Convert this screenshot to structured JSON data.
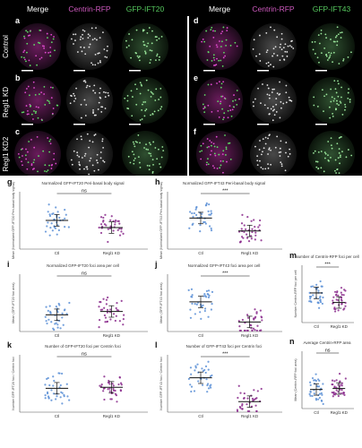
{
  "figure": {
    "micro": {
      "panels": [
        "a",
        "b",
        "c",
        "d",
        "e",
        "f"
      ],
      "header_left": [
        "Merge",
        "Centrin-RFP",
        "GFP-IFT20"
      ],
      "header_right": [
        "Merge",
        "Centrin-RFP",
        "GFP-IFT43"
      ],
      "rows": [
        "Control",
        "Regl1 KD",
        "Regl1 KD2"
      ]
    },
    "colors": {
      "magenta": "#b0279a",
      "green": "#39b54a",
      "blue": "#5b8fd6",
      "purple": "#8a2a8c"
    },
    "plots": [
      {
        "letter": "g",
        "title": "Normalized GFP-IFT20 Peri-basal body signal",
        "ylabel": "Mean (Normalized GFP-IFT20 Peri-basal body signal)",
        "categories": [
          "Ctl",
          "Regl1 KD"
        ],
        "significance": "ns",
        "means": [
          0.6,
          0.45
        ],
        "ylim": [
          0,
          1.2
        ]
      },
      {
        "letter": "h",
        "title": "Normalized GFP-IFT43 Peri-basal body signal",
        "ylabel": "Mean (Normalized GFP-IFT43 Peri-basal body signal)",
        "categories": [
          "Ctl",
          "Regl1 KD"
        ],
        "significance": "***",
        "means": [
          0.65,
          0.38
        ],
        "ylim": [
          0,
          1.2
        ]
      },
      {
        "letter": "i",
        "title": "Normalized GFP-IFT20 foci area per cell",
        "ylabel": "Mean (GFP-IFT20 foci area)",
        "categories": [
          "Ctl",
          "Regl1 KD"
        ],
        "significance": "ns",
        "means": [
          0.35,
          0.42
        ],
        "ylim": [
          0,
          1.2
        ]
      },
      {
        "letter": "j",
        "title": "Normalized GFP-IFT43 foci area per cell",
        "ylabel": "Mean (GFP-IFT43 foci area)",
        "categories": [
          "Ctl",
          "Regl1 KD"
        ],
        "significance": "***",
        "means": [
          0.62,
          0.2
        ],
        "ylim": [
          0,
          1.2
        ]
      },
      {
        "letter": "k",
        "title": "Number of GFP-IFT20 foci per Centrin foci",
        "ylabel": "Number GFP-IFT20 foci / Centrin foci",
        "categories": [
          "Ctl",
          "Regl1 KD"
        ],
        "significance": "ns",
        "means": [
          0.5,
          0.52
        ],
        "ylim": [
          0,
          1.2
        ]
      },
      {
        "letter": "l",
        "title": "Number of GFP-IFT43 foci per Centrin foci",
        "ylabel": "Number GFP-IFT43 foci / Centrin foci",
        "categories": [
          "Ctl",
          "Regl1 KD"
        ],
        "significance": "***",
        "means": [
          0.72,
          0.22
        ],
        "ylim": [
          0,
          1.2
        ]
      },
      {
        "letter": "m",
        "title": "Number of Centrin-RFP foci per cell",
        "ylabel": "Number Centrin-RFP foci per cell",
        "categories": [
          "Ctl",
          "Regl1 KD"
        ],
        "significance": "***",
        "means": [
          0.62,
          0.42
        ],
        "ylim": [
          0,
          1.2
        ]
      },
      {
        "letter": "n",
        "title": "Average Centrin-RFP area",
        "ylabel": "Mean (Centrin-RFP foci area)",
        "categories": [
          "Ctl",
          "Regl1 KD"
        ],
        "significance": "ns",
        "means": [
          0.4,
          0.42
        ],
        "ylim": [
          0,
          1.2
        ]
      }
    ]
  }
}
